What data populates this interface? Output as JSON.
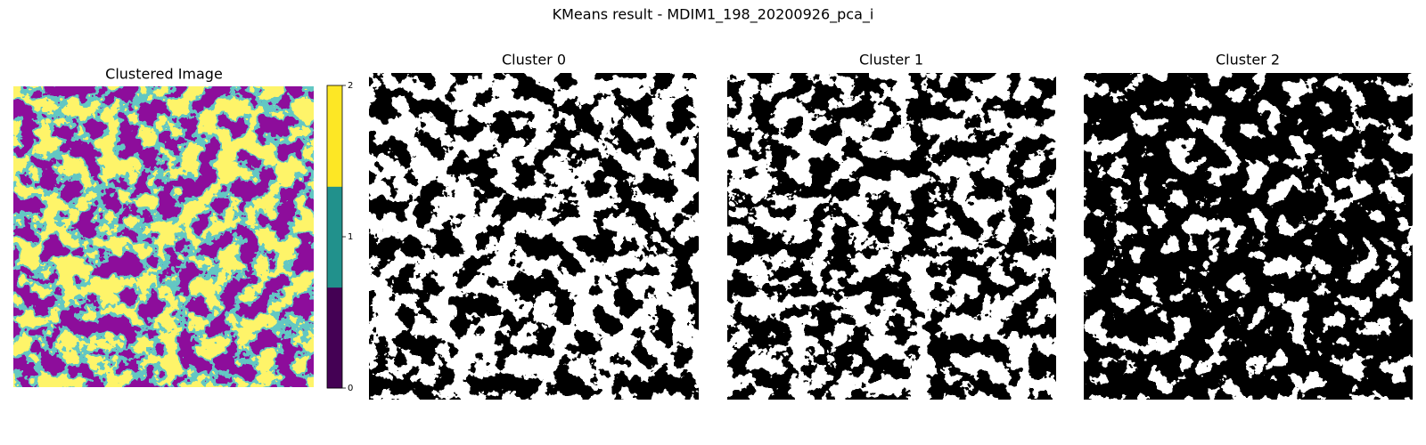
{
  "title": "KMeans result - MDIM1_198_20200926_pca_i",
  "panels": [
    {
      "title": "Clustered Image"
    },
    {
      "title": "Cluster 0"
    },
    {
      "title": "Cluster 1"
    },
    {
      "title": "Cluster 2"
    }
  ],
  "colorbar": {
    "lim": [
      0,
      2
    ],
    "ticks": [
      0,
      1,
      2
    ],
    "colors": [
      "#440154",
      "#21918c",
      "#fde725"
    ]
  }
}
